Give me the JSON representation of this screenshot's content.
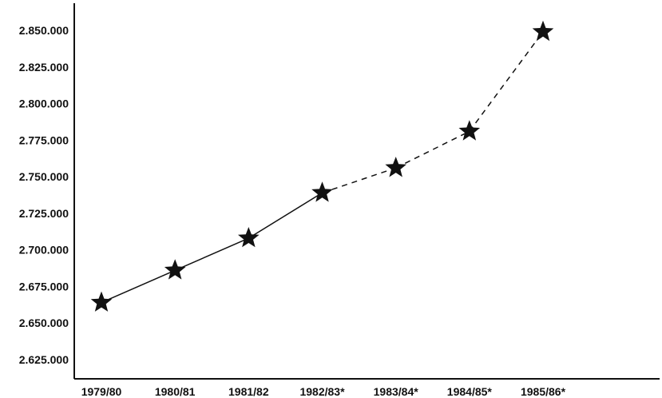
{
  "chart_data": {
    "type": "line",
    "title": "",
    "xlabel": "",
    "ylabel": "",
    "categories": [
      "1979/80",
      "1980/81",
      "1981/82",
      "1982/83*",
      "1983/84*",
      "1984/85*",
      "1985/86*"
    ],
    "y_tick_labels": [
      "2.850.000",
      "2.825.000",
      "2.800.000",
      "2.775.000",
      "2.750.000",
      "2.725.000",
      "2.700.000",
      "2.675.000",
      "2.650.000",
      "2.625.000"
    ],
    "y_ticks": [
      2850000,
      2825000,
      2800000,
      2775000,
      2750000,
      2725000,
      2700000,
      2675000,
      2650000,
      2625000
    ],
    "ylim": [
      2618000,
      2862000
    ],
    "series": [
      {
        "values": [
          2664000,
          2686000,
          2708000,
          2739000,
          2756000,
          2781000,
          2849000
        ],
        "marker": "star",
        "line_styles": [
          "solid",
          "solid",
          "solid",
          "dashed",
          "dashed",
          "dashed"
        ]
      }
    ],
    "grid": false,
    "legend": "none",
    "colors": {
      "line": "#111111",
      "marker": "#111111"
    }
  }
}
